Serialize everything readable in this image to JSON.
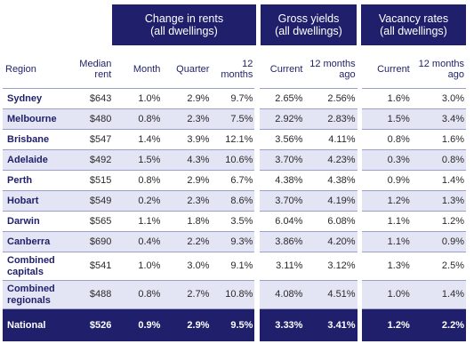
{
  "groups": {
    "change_line1": "Change in rents",
    "change_line2": "(all dwellings)",
    "yields_line1": "Gross yields",
    "yields_line2": "(all dwellings)",
    "vacancy_line1": "Vacancy rates",
    "vacancy_line2": "(all dwellings)"
  },
  "columns": {
    "region": "Region",
    "median_rent_1": "Median",
    "median_rent_2": "rent",
    "month": "Month",
    "quarter": "Quarter",
    "twelve_1": "12",
    "twelve_2": "months",
    "current": "Current",
    "ago_1": "12 months",
    "ago_2": "ago",
    "vac_current": "Current",
    "vac_ago_1": "12 months",
    "vac_ago_2": "ago"
  },
  "rows": [
    {
      "region": "Sydney",
      "rent": "$643",
      "month": "1.0%",
      "quarter": "2.9%",
      "twelve": "9.7%",
      "yield_cur": "2.65%",
      "yield_ago": "2.56%",
      "vac_cur": "1.6%",
      "vac_ago": "3.0%"
    },
    {
      "region": "Melbourne",
      "rent": "$480",
      "month": "0.8%",
      "quarter": "2.3%",
      "twelve": "7.5%",
      "yield_cur": "2.92%",
      "yield_ago": "2.83%",
      "vac_cur": "1.5%",
      "vac_ago": "3.4%"
    },
    {
      "region": "Brisbane",
      "rent": "$547",
      "month": "1.4%",
      "quarter": "3.9%",
      "twelve": "12.1%",
      "yield_cur": "3.56%",
      "yield_ago": "4.11%",
      "vac_cur": "0.8%",
      "vac_ago": "1.6%"
    },
    {
      "region": "Adelaide",
      "rent": "$492",
      "month": "1.5%",
      "quarter": "4.3%",
      "twelve": "10.6%",
      "yield_cur": "3.70%",
      "yield_ago": "4.23%",
      "vac_cur": "0.3%",
      "vac_ago": "0.8%"
    },
    {
      "region": "Perth",
      "rent": "$515",
      "month": "0.8%",
      "quarter": "2.9%",
      "twelve": "6.7%",
      "yield_cur": "4.38%",
      "yield_ago": "4.38%",
      "vac_cur": "0.9%",
      "vac_ago": "1.4%"
    },
    {
      "region": "Hobart",
      "rent": "$549",
      "month": "0.2%",
      "quarter": "2.3%",
      "twelve": "8.6%",
      "yield_cur": "3.70%",
      "yield_ago": "4.19%",
      "vac_cur": "1.2%",
      "vac_ago": "1.3%"
    },
    {
      "region": "Darwin",
      "rent": "$565",
      "month": "1.1%",
      "quarter": "1.8%",
      "twelve": "3.5%",
      "yield_cur": "6.04%",
      "yield_ago": "6.08%",
      "vac_cur": "1.1%",
      "vac_ago": "1.2%"
    },
    {
      "region": "Canberra",
      "rent": "$690",
      "month": "0.4%",
      "quarter": "2.2%",
      "twelve": "9.3%",
      "yield_cur": "3.86%",
      "yield_ago": "4.20%",
      "vac_cur": "1.1%",
      "vac_ago": "0.9%"
    },
    {
      "region_1": "Combined",
      "region_2": "capitals",
      "rent": "$541",
      "month": "1.0%",
      "quarter": "3.0%",
      "twelve": "9.1%",
      "yield_cur": "3.11%",
      "yield_ago": "3.12%",
      "vac_cur": "1.3%",
      "vac_ago": "2.5%"
    },
    {
      "region_1": "Combined",
      "region_2": "regionals",
      "rent": "$488",
      "month": "0.8%",
      "quarter": "2.7%",
      "twelve": "10.8%",
      "yield_cur": "4.08%",
      "yield_ago": "4.51%",
      "vac_cur": "1.0%",
      "vac_ago": "1.4%"
    }
  ],
  "national": {
    "region": "National",
    "rent": "$526",
    "month": "0.9%",
    "quarter": "2.9%",
    "twelve": "9.5%",
    "yield_cur": "3.33%",
    "yield_ago": "3.41%",
    "vac_cur": "1.2%",
    "vac_ago": "2.2%"
  },
  "colors": {
    "navy": "#1f1f6b",
    "shade": "#e3e5f4",
    "rule": "#9aa0c9"
  }
}
